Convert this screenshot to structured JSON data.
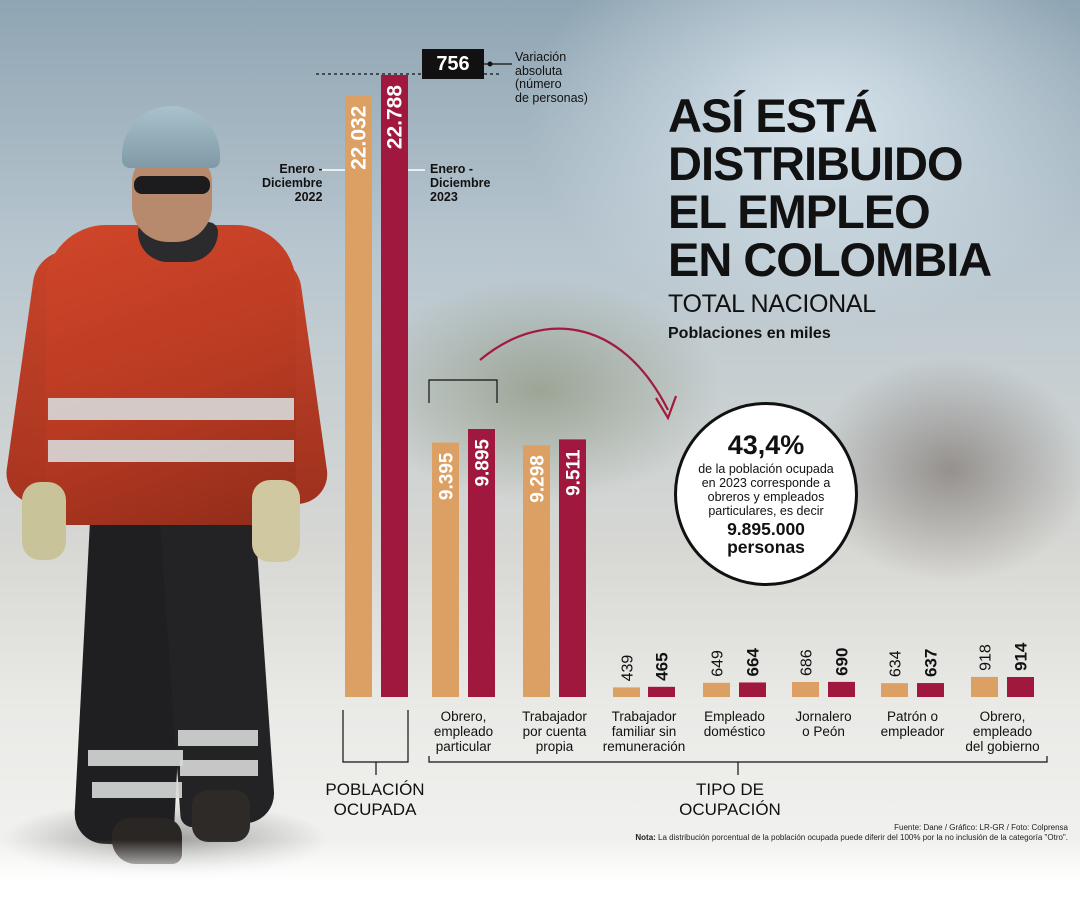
{
  "title": "ASÍ ESTÁ\nDISTRIBUIDO\nEL EMPLEO\nEN COLOMBIA",
  "subtitle": "TOTAL NACIONAL",
  "units_note": "Poblaciones en miles",
  "variation": {
    "value": "756",
    "label": "Variación\nabsoluta\n(número\nde personas)"
  },
  "periods": [
    {
      "label": "Enero -\nDiciembre\n2022",
      "color": "#DDA064"
    },
    {
      "label": "Enero -\nDiciembre\n2023",
      "color": "#A0183D"
    }
  ],
  "group_labels": {
    "left": "POBLACIÓN\nOCUPADA",
    "right": "TIPO DE\nOCUPACIÓN"
  },
  "callout": {
    "percent": "43,4%",
    "text": "de la población ocupada en 2023 corresponde a obreros y empleados particulares, es decir",
    "number": "9.895.000",
    "unit": "personas"
  },
  "source": "Fuente: Dane / Gráfico: LR-GR / Foto: Colprensa",
  "note_label": "Nota:",
  "note": "La distribución porcentual de la población ocupada puede diferir del 100% por la no inclusión de la categoría \"Otro\".",
  "chart_data": {
    "type": "bar",
    "categories": [
      "Población ocupada",
      "Obrero, empleado particular",
      "Trabajador por cuenta propia",
      "Trabajador familiar sin remuneración",
      "Empleado doméstico",
      "Jornalero o Peón",
      "Patrón o empleador",
      "Obrero, empleado del gobierno"
    ],
    "category_labels": [
      "",
      "Obrero,\nempleado\nparticular",
      "Trabajador\npor cuenta\npropia",
      "Trabajador\nfamiliar sin\nremuneración",
      "Empleado\ndoméstico",
      "Jornalero\no Peón",
      "Patrón o\nempleador",
      "Obrero,\nempleado\ndel gobierno"
    ],
    "series": [
      {
        "name": "Enero - Diciembre 2022",
        "values": [
          22032,
          9395,
          9298,
          439,
          649,
          686,
          634,
          918
        ],
        "labels": [
          "22.032",
          "9.395",
          "9.298",
          "439",
          "649",
          "686",
          "634",
          "918"
        ]
      },
      {
        "name": "Enero - Diciembre 2023",
        "values": [
          22788,
          9895,
          9511,
          465,
          664,
          690,
          637,
          914
        ],
        "labels": [
          "22.788",
          "9.895",
          "9.511",
          "465",
          "664",
          "690",
          "637",
          "914"
        ]
      }
    ],
    "ylabel": "Poblaciones en miles"
  }
}
